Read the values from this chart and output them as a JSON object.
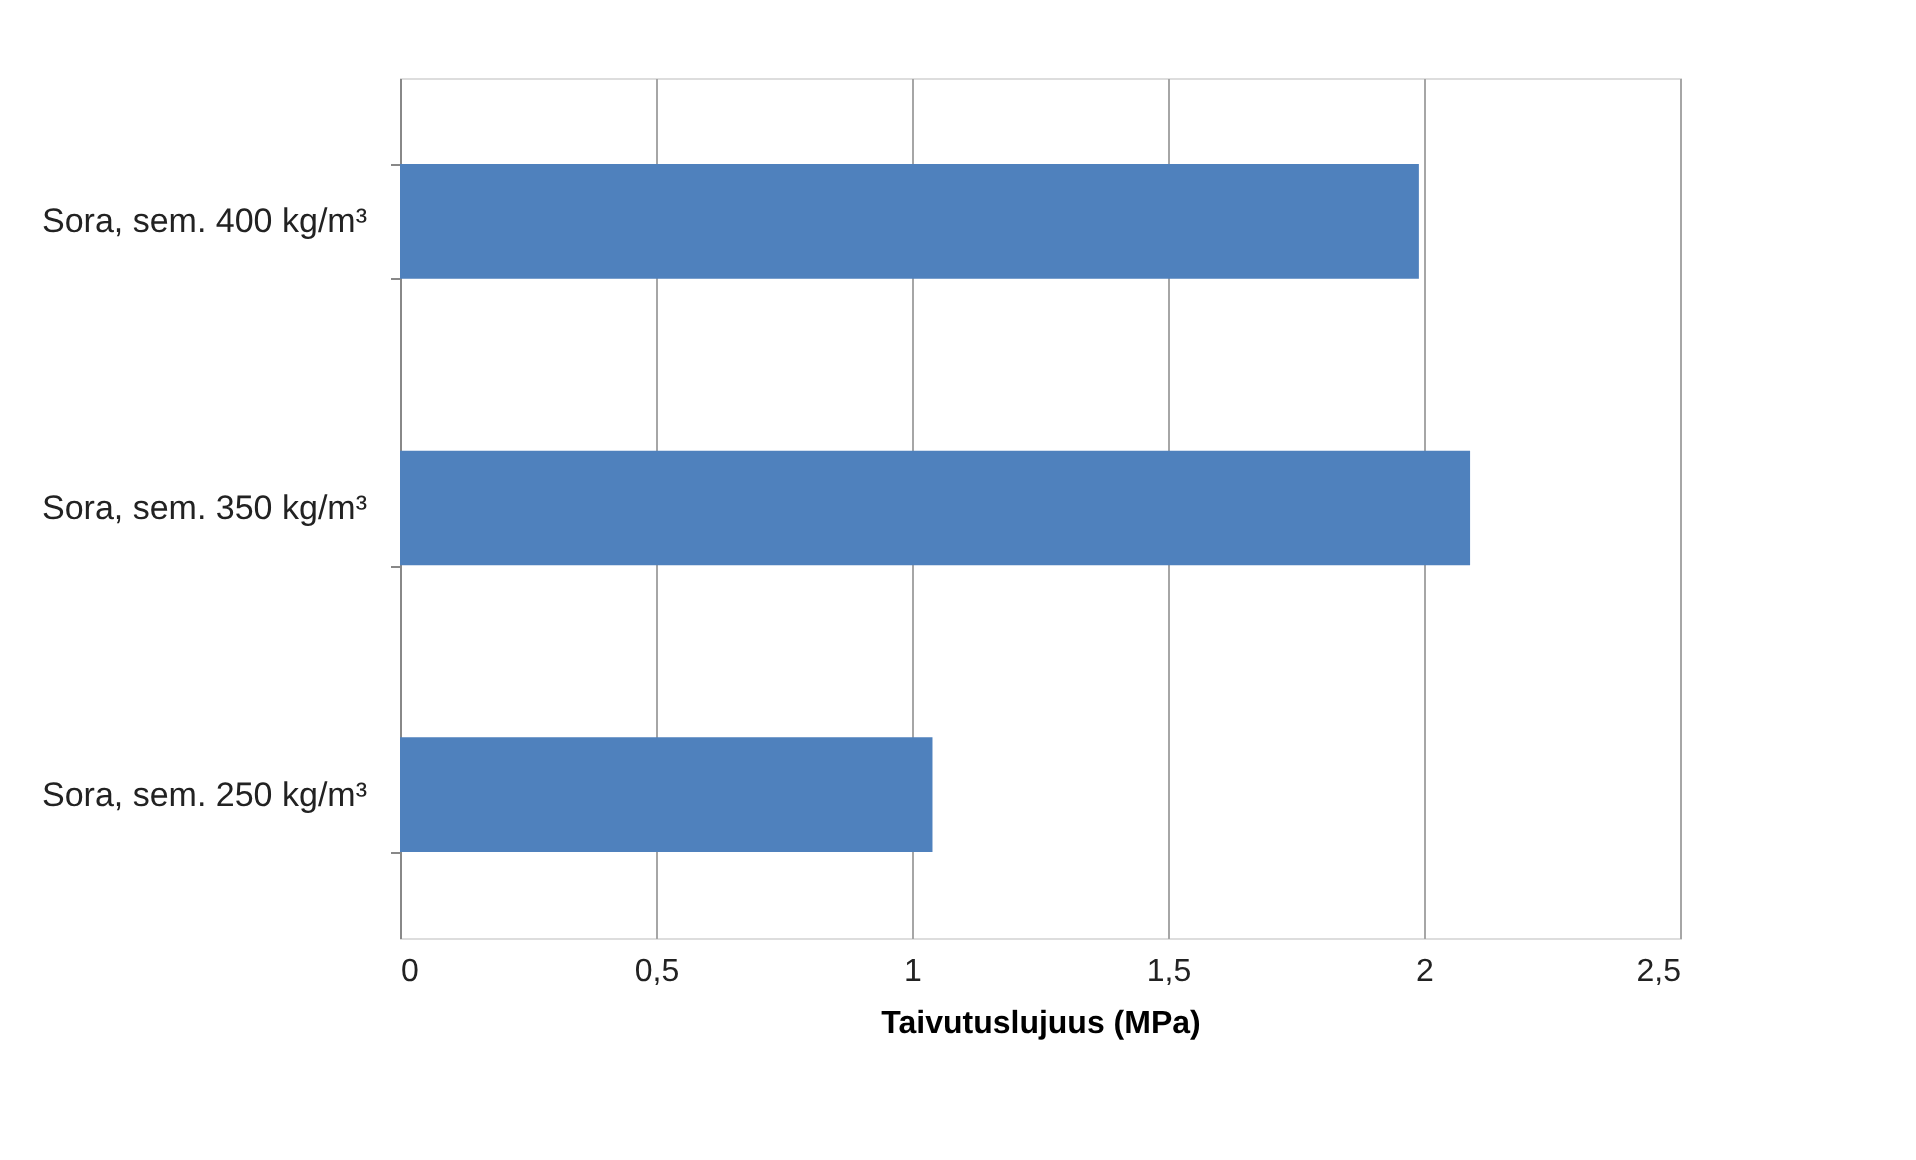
{
  "chart_data": {
    "type": "bar",
    "orientation": "horizontal",
    "categories": [
      "Sora, sem. 400 kg/m³",
      "Sora, sem. 350 kg/m³",
      "Sora, sem. 250 kg/m³"
    ],
    "values": [
      1.99,
      2.09,
      1.04
    ],
    "color": "#4f81bd",
    "xlabel": "Taivutuslujuus (MPa)",
    "xlim": [
      0,
      2.5
    ],
    "xticks": [
      0,
      {
        "value": 0.5,
        "label": "0,5"
      },
      1,
      {
        "value": 1.5,
        "label": "1,5"
      },
      2,
      {
        "value": 2.5,
        "label": "2,5"
      }
    ],
    "grid": "x"
  }
}
